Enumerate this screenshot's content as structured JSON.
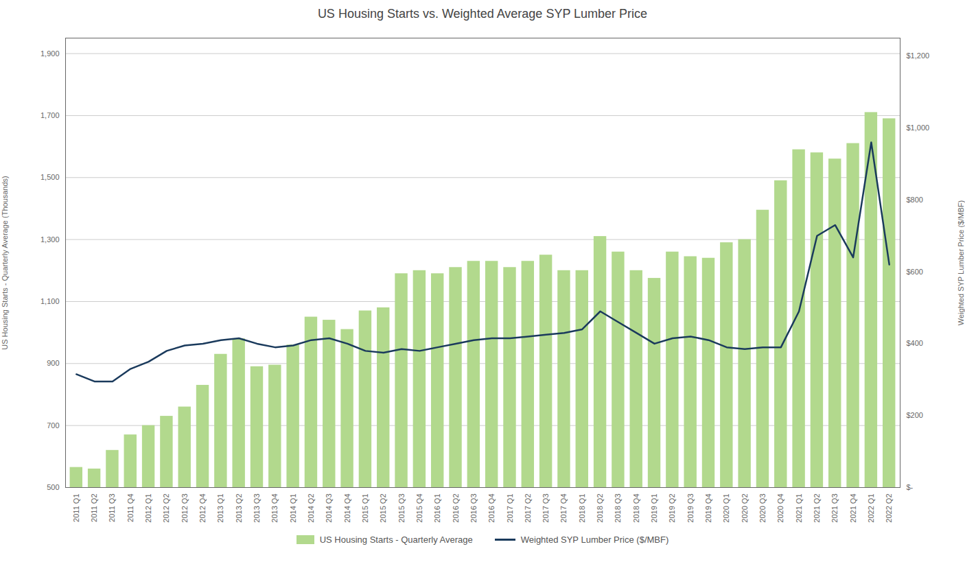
{
  "chart_data": {
    "type": "bar",
    "title": "US Housing Starts vs. Weighted Average SYP Lumber Price",
    "ylabel": "US Housing Starts - Quarterly Average (Thousands)",
    "y2label": "Weighted SYP Lumber Price ($/MBF)",
    "categories": [
      "2011 Q1",
      "2011 Q2",
      "2011 Q3",
      "2011 Q4",
      "2012 Q1",
      "2012 Q2",
      "2012 Q3",
      "2012 Q4",
      "2013 Q1",
      "2013 Q2",
      "2013 Q3",
      "2013 Q4",
      "2014 Q1",
      "2014 Q2",
      "2014 Q3",
      "2014 Q4",
      "2015 Q1",
      "2015 Q2",
      "2015 Q3",
      "2015 Q4",
      "2016 Q1",
      "2016 Q2",
      "2016 Q3",
      "2016 Q4",
      "2017 Q1",
      "2017 Q2",
      "2017 Q3",
      "2017 Q4",
      "2018 Q1",
      "2018 Q2",
      "2018 Q3",
      "2018 Q4",
      "2019 Q1",
      "2019 Q2",
      "2019 Q3",
      "2019 Q4",
      "2020 Q1",
      "2020 Q2",
      "2020 Q3",
      "2020 Q4",
      "2021 Q1",
      "2021 Q2",
      "2021 Q3",
      "2021 Q4",
      "2022 Q1",
      "2022 Q2"
    ],
    "series": [
      {
        "name": "US Housing Starts - Quarterly Average",
        "type": "bar",
        "color": "#b2d98d",
        "values": [
          565,
          560,
          620,
          670,
          700,
          730,
          760,
          830,
          930,
          980,
          890,
          895,
          960,
          1050,
          1040,
          1010,
          1070,
          1080,
          1190,
          1200,
          1190,
          1210,
          1230,
          1230,
          1210,
          1230,
          1250,
          1200,
          1200,
          1310,
          1260,
          1200,
          1175,
          1260,
          1245,
          1240,
          1290,
          1300,
          1395,
          1490,
          1590,
          1580,
          1560,
          1610,
          1710,
          1690
        ]
      },
      {
        "name": "Weighted SYP Lumber Price ($/MBF)",
        "type": "line",
        "axis": "y2",
        "color": "#1a3a5c",
        "values": [
          315,
          295,
          295,
          330,
          350,
          380,
          395,
          400,
          410,
          415,
          400,
          390,
          395,
          410,
          415,
          400,
          380,
          375,
          385,
          380,
          390,
          400,
          410,
          415,
          415,
          420,
          425,
          430,
          440,
          490,
          460,
          430,
          400,
          415,
          420,
          410,
          390,
          385,
          390,
          390,
          490,
          700,
          730,
          640,
          960,
          620
        ]
      }
    ],
    "ylim": [
      500,
      1950
    ],
    "yticks": [
      500,
      700,
      900,
      {
        "value": 1100,
        "label": "1,100"
      },
      {
        "value": 1300,
        "label": "1,300"
      },
      {
        "value": 1500,
        "label": "1,500"
      },
      {
        "value": 1700,
        "label": "1,700"
      },
      {
        "value": 1900,
        "label": "1,900"
      }
    ],
    "y2lim": [
      0,
      1250
    ],
    "y2ticks": [
      {
        "value": 0,
        "label": "$-"
      },
      {
        "value": 200,
        "label": "$200"
      },
      {
        "value": 400,
        "label": "$400"
      },
      {
        "value": 600,
        "label": "$600"
      },
      {
        "value": 800,
        "label": "$800"
      },
      {
        "value": 1000,
        "label": "$1,000"
      },
      {
        "value": 1200,
        "label": "$1,200"
      }
    ],
    "grid": true,
    "legend": "bottom"
  }
}
